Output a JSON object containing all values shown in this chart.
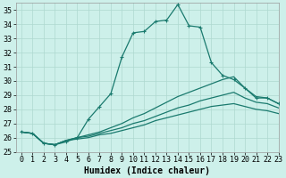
{
  "xlabel": "Humidex (Indice chaleur)",
  "bg_color": "#cdf0ea",
  "line_color": "#1a7a6e",
  "grid_color": "#aed8d0",
  "xlim": [
    -0.5,
    23
  ],
  "ylim": [
    25,
    35.5
  ],
  "yticks": [
    25,
    26,
    27,
    28,
    29,
    30,
    31,
    32,
    33,
    34,
    35
  ],
  "xticks": [
    0,
    1,
    2,
    3,
    4,
    5,
    6,
    7,
    8,
    9,
    10,
    11,
    12,
    13,
    14,
    15,
    16,
    17,
    18,
    19,
    20,
    21,
    22,
    23
  ],
  "line1_x": [
    0,
    1,
    2,
    3,
    4,
    5,
    6,
    7,
    8,
    9,
    10,
    11,
    12,
    13,
    14,
    15,
    16,
    17,
    18,
    19,
    20,
    21,
    22,
    23
  ],
  "line1_y": [
    26.4,
    26.3,
    25.6,
    25.5,
    25.7,
    26.0,
    27.3,
    28.2,
    29.1,
    31.7,
    33.4,
    33.5,
    34.2,
    34.3,
    35.4,
    33.9,
    33.8,
    31.3,
    30.4,
    30.1,
    29.5,
    28.8,
    28.8,
    28.4
  ],
  "line2_x": [
    0,
    1,
    2,
    3,
    4,
    5,
    6,
    7,
    8,
    9,
    10,
    11,
    12,
    13,
    14,
    15,
    16,
    17,
    18,
    19,
    20,
    21,
    22,
    23
  ],
  "line2_y": [
    26.4,
    26.3,
    25.6,
    25.5,
    25.8,
    26.0,
    26.2,
    26.4,
    26.7,
    27.0,
    27.4,
    27.7,
    28.1,
    28.5,
    28.9,
    29.2,
    29.5,
    29.8,
    30.1,
    30.3,
    29.5,
    28.9,
    28.8,
    28.4
  ],
  "line3_x": [
    0,
    1,
    2,
    3,
    4,
    5,
    6,
    7,
    8,
    9,
    10,
    11,
    12,
    13,
    14,
    15,
    16,
    17,
    18,
    19,
    20,
    21,
    22,
    23
  ],
  "line3_y": [
    26.4,
    26.3,
    25.6,
    25.5,
    25.8,
    26.0,
    26.1,
    26.3,
    26.5,
    26.7,
    27.0,
    27.2,
    27.5,
    27.8,
    28.1,
    28.3,
    28.6,
    28.8,
    29.0,
    29.2,
    28.8,
    28.5,
    28.4,
    28.1
  ],
  "line4_x": [
    0,
    1,
    2,
    3,
    4,
    5,
    6,
    7,
    8,
    9,
    10,
    11,
    12,
    13,
    14,
    15,
    16,
    17,
    18,
    19,
    20,
    21,
    22,
    23
  ],
  "line4_y": [
    26.4,
    26.3,
    25.6,
    25.5,
    25.8,
    25.9,
    26.0,
    26.2,
    26.3,
    26.5,
    26.7,
    26.9,
    27.2,
    27.4,
    27.6,
    27.8,
    28.0,
    28.2,
    28.3,
    28.4,
    28.2,
    28.0,
    27.9,
    27.7
  ],
  "fontsize_label": 7,
  "fontsize_tick": 6,
  "line_width": 0.9,
  "marker_size": 3.5
}
